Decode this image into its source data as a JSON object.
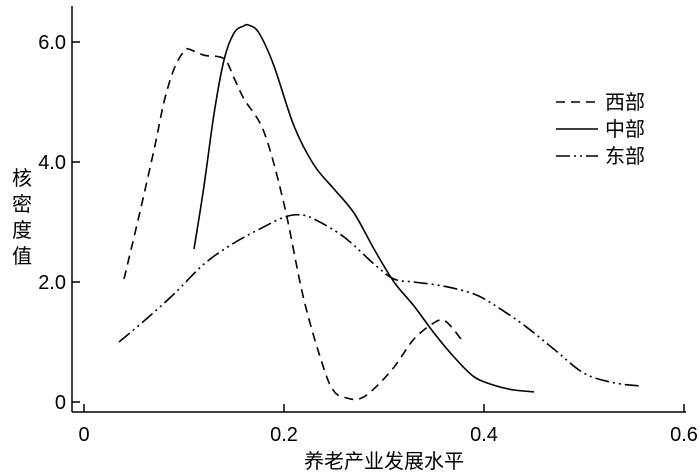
{
  "chart_data": {
    "type": "line",
    "xlabel": "养老产业发展水平",
    "ylabel": "核密度值",
    "xlim": [
      -0.01,
      0.6
    ],
    "ylim": [
      -0.15,
      6.6
    ],
    "x_ticks": [
      {
        "value": 0,
        "label": "0"
      },
      {
        "value": 0.2,
        "label": "0.2"
      },
      {
        "value": 0.4,
        "label": "0.4"
      },
      {
        "value": 0.6,
        "label": "0.6"
      }
    ],
    "y_ticks": [
      {
        "value": 0,
        "label": "0"
      },
      {
        "value": 2,
        "label": "2.0"
      },
      {
        "value": 4,
        "label": "4.0"
      },
      {
        "value": 6,
        "label": "6.0"
      }
    ],
    "legend_position": "top-right",
    "series": [
      {
        "name": "西部",
        "dash": "dashed",
        "x": [
          0.04,
          0.055,
          0.07,
          0.08,
          0.09,
          0.1,
          0.105,
          0.12,
          0.14,
          0.15,
          0.16,
          0.18,
          0.2,
          0.22,
          0.24,
          0.25,
          0.26,
          0.275,
          0.29,
          0.31,
          0.33,
          0.35,
          0.36,
          0.37,
          0.38
        ],
        "y": [
          2.05,
          3.1,
          4.2,
          5.0,
          5.55,
          5.85,
          5.88,
          5.78,
          5.72,
          5.4,
          5.05,
          4.5,
          3.3,
          1.7,
          0.55,
          0.18,
          0.08,
          0.05,
          0.22,
          0.58,
          1.05,
          1.32,
          1.36,
          1.2,
          0.98
        ]
      },
      {
        "name": "中部",
        "dash": "solid",
        "x": [
          0.11,
          0.12,
          0.13,
          0.14,
          0.15,
          0.16,
          0.165,
          0.175,
          0.19,
          0.21,
          0.23,
          0.25,
          0.27,
          0.29,
          0.31,
          0.33,
          0.35,
          0.37,
          0.39,
          0.41,
          0.43,
          0.45
        ],
        "y": [
          2.55,
          3.6,
          4.8,
          5.7,
          6.15,
          6.27,
          6.28,
          6.15,
          5.6,
          4.6,
          3.95,
          3.55,
          3.15,
          2.55,
          2.0,
          1.6,
          1.15,
          0.75,
          0.42,
          0.28,
          0.2,
          0.17
        ]
      },
      {
        "name": "东部",
        "dash": "dash-dot-dot",
        "x": [
          0.035,
          0.06,
          0.09,
          0.12,
          0.15,
          0.18,
          0.2,
          0.215,
          0.23,
          0.26,
          0.29,
          0.31,
          0.33,
          0.36,
          0.39,
          0.41,
          0.44,
          0.47,
          0.5,
          0.53,
          0.555
        ],
        "y": [
          1.0,
          1.35,
          1.8,
          2.3,
          2.65,
          2.92,
          3.08,
          3.12,
          3.05,
          2.75,
          2.3,
          2.05,
          2.0,
          1.93,
          1.8,
          1.62,
          1.28,
          0.88,
          0.48,
          0.32,
          0.27
        ]
      }
    ]
  }
}
